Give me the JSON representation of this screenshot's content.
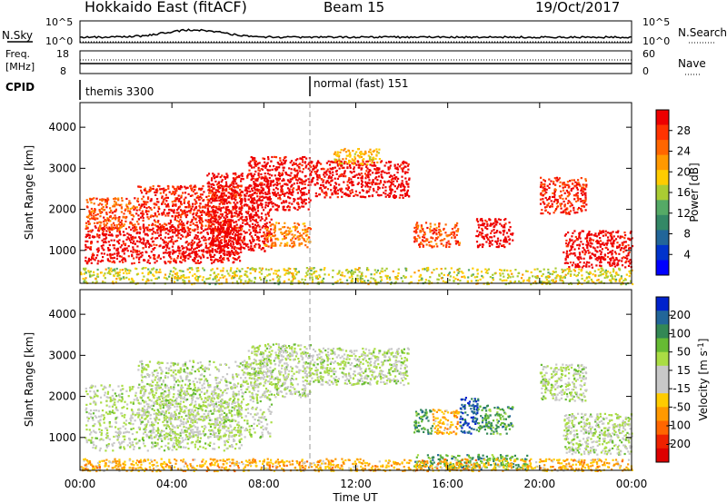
{
  "header": {
    "title": "Hokkaido East (fitACF)",
    "beam": "Beam 15",
    "date": "19/Oct/2017"
  },
  "top_panels": {
    "nsky_label": "N.Sky",
    "nsearch_label": "N.Search",
    "nsky_ticks": [
      "10^5",
      "10^0"
    ],
    "nsky_right_ticks": [
      "10^5",
      "10^0"
    ],
    "freq_label": "Freq.",
    "freq_unit": "[MHz]",
    "freq_ticks": [
      "18",
      "8"
    ],
    "nave_label": "Nave",
    "nave_ticks": [
      "60",
      "0"
    ],
    "cpid_label": "CPID",
    "cpid_segments": [
      {
        "label": "themis 3300",
        "start_h": 0
      },
      {
        "label": "normal (fast) 151",
        "start_h": 10
      }
    ]
  },
  "chart_data": [
    {
      "type": "heatmap",
      "name": "power",
      "ylabel": "Slant Range [km]",
      "yticks": [
        1000,
        2000,
        3000,
        4000
      ],
      "ylim": [
        200,
        4600
      ],
      "xlim": [
        0,
        24
      ],
      "xticks": [
        0,
        4,
        8,
        12,
        16,
        20,
        24
      ],
      "colorbar": {
        "label": "Power [dB]",
        "ticks": [
          "28",
          "24",
          "20",
          "16",
          "12",
          "8",
          "4"
        ],
        "colors": [
          "#ee0000",
          "#ff3300",
          "#ff6600",
          "#ff9900",
          "#ffcc00",
          "#aacc33",
          "#55aa66",
          "#338866",
          "#226699",
          "#0033cc",
          "#0000ff"
        ]
      },
      "regions": [
        {
          "x0": 0.2,
          "x1": 7.0,
          "r0": 700,
          "r1": 1600,
          "level": 0
        },
        {
          "x0": 0.2,
          "x1": 2.5,
          "r0": 1500,
          "r1": 2300,
          "level": 2
        },
        {
          "x0": 2.5,
          "x1": 7.0,
          "r0": 1500,
          "r1": 2600,
          "level": 1
        },
        {
          "x0": 5.5,
          "x1": 8.3,
          "r0": 1000,
          "r1": 2900,
          "level": 0
        },
        {
          "x0": 7.3,
          "x1": 10.0,
          "r0": 2000,
          "r1": 3300,
          "level": 0
        },
        {
          "x0": 8.0,
          "x1": 10.0,
          "r0": 1100,
          "r1": 1700,
          "level": 3
        },
        {
          "x0": 10.0,
          "x1": 14.3,
          "r0": 2300,
          "r1": 3200,
          "level": 0
        },
        {
          "x0": 11.0,
          "x1": 13.0,
          "r0": 3100,
          "r1": 3500,
          "level": 4
        },
        {
          "x0": 14.5,
          "x1": 16.5,
          "r0": 1100,
          "r1": 1700,
          "level": 2
        },
        {
          "x0": 17.2,
          "x1": 18.8,
          "r0": 1100,
          "r1": 1800,
          "level": 0
        },
        {
          "x0": 20.0,
          "x1": 22.0,
          "r0": 1900,
          "r1": 2800,
          "level": 1
        },
        {
          "x0": 21.0,
          "x1": 24.0,
          "r0": 600,
          "r1": 1500,
          "level": 0
        },
        {
          "x0": 0.0,
          "x1": 24.0,
          "r0": 200,
          "r1": 600,
          "level": 5
        }
      ]
    },
    {
      "type": "heatmap",
      "name": "velocity",
      "ylabel": "Slant Range [km]",
      "yticks": [
        1000,
        2000,
        3000,
        4000
      ],
      "ylim": [
        200,
        4600
      ],
      "xlim": [
        0,
        24
      ],
      "xticks": [
        0,
        4,
        8,
        12,
        16,
        20,
        24
      ],
      "xlabel": "Time UT",
      "xtick_labels": [
        "00:00",
        "04:00",
        "08:00",
        "12:00",
        "16:00",
        "20:00",
        "00:00"
      ],
      "colorbar": {
        "label": "Velocity [m s^-1]",
        "ticks": [
          "200",
          "100",
          "50",
          "15",
          "-15",
          "-50",
          "-100",
          "-200"
        ],
        "colors": [
          "#0022cc",
          "#226699",
          "#338855",
          "#66bb33",
          "#aadd44",
          "#c8c8c8",
          "#c8c8c8",
          "#ffcc00",
          "#ff9900",
          "#ff6600",
          "#ee2200",
          "#dd0000"
        ]
      },
      "regions": [
        {
          "x0": 0.2,
          "x1": 7.0,
          "r0": 700,
          "r1": 2300,
          "level": 5
        },
        {
          "x0": 2.5,
          "x1": 8.3,
          "r0": 1000,
          "r1": 2900,
          "level": 5
        },
        {
          "x0": 7.3,
          "x1": 10.0,
          "r0": 2000,
          "r1": 3300,
          "level": 5
        },
        {
          "x0": 10.0,
          "x1": 14.3,
          "r0": 2300,
          "r1": 3200,
          "level": 5
        },
        {
          "x0": 14.5,
          "x1": 15.3,
          "r0": 1100,
          "r1": 1700,
          "level": 3
        },
        {
          "x0": 15.3,
          "x1": 16.5,
          "r0": 1100,
          "r1": 1700,
          "level": 8
        },
        {
          "x0": 16.5,
          "x1": 17.3,
          "r0": 1100,
          "r1": 2000,
          "level": 1
        },
        {
          "x0": 17.3,
          "x1": 18.8,
          "r0": 1100,
          "r1": 1800,
          "level": 3
        },
        {
          "x0": 20.0,
          "x1": 22.0,
          "r0": 1900,
          "r1": 2800,
          "level": 5
        },
        {
          "x0": 21.0,
          "x1": 24.0,
          "r0": 600,
          "r1": 1600,
          "level": 5
        },
        {
          "x0": 14.5,
          "x1": 19.5,
          "r0": 250,
          "r1": 600,
          "level": 3
        },
        {
          "x0": 0.0,
          "x1": 24.0,
          "r0": 200,
          "r1": 500,
          "level": 8
        }
      ]
    }
  ]
}
